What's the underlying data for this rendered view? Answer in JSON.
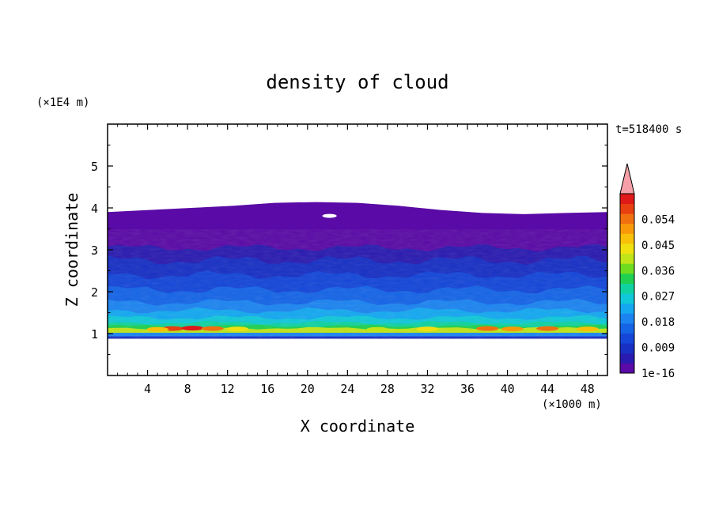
{
  "chart_data": {
    "type": "heatmap",
    "title": "density of cloud",
    "xlabel": "X coordinate",
    "ylabel": "Z coordinate",
    "x_unit": "(×1000 m)",
    "y_unit": "(×1E4 m)",
    "time_label": "t=518400 s",
    "xlim": [
      0,
      50
    ],
    "ylim": [
      0,
      6
    ],
    "x_ticks": [
      4,
      8,
      12,
      16,
      20,
      24,
      28,
      32,
      36,
      40,
      44,
      48
    ],
    "y_ticks": [
      1,
      2,
      3,
      4,
      5
    ],
    "colorbar": {
      "tick_labels": [
        "1e-16",
        "0.009",
        "0.018",
        "0.027",
        "0.036",
        "0.045",
        "0.054"
      ],
      "tick_values": [
        0,
        0.009,
        0.018,
        0.027,
        0.036,
        0.045,
        0.054
      ],
      "colors": [
        "#5a0aa6",
        "#2a1bb0",
        "#1830c4",
        "#1446d8",
        "#1564e6",
        "#1c84f0",
        "#14a8f0",
        "#10c8d8",
        "#10d2a0",
        "#20d050",
        "#70dc20",
        "#c0e418",
        "#f0e010",
        "#f8c008",
        "#f89a08",
        "#f07010",
        "#e84010",
        "#e01818"
      ],
      "extend_color": "#f5a0a8"
    },
    "field_description_levels": {
      "cloud_top": [
        3.9,
        3.95,
        4.0,
        4.05,
        4.12,
        4.14,
        4.12,
        4.05,
        3.95,
        3.88,
        3.85,
        3.88,
        3.9
      ],
      "cloud_base": 0.88
    }
  }
}
